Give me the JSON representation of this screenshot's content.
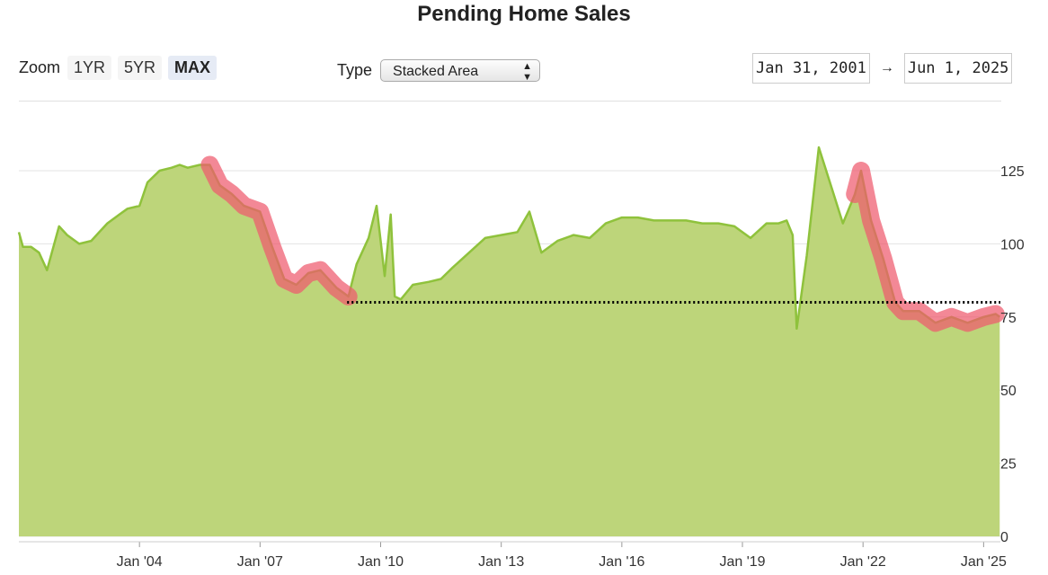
{
  "title": "Pending Home Sales",
  "zoom": {
    "label": "Zoom",
    "options": [
      "1YR",
      "5YR",
      "MAX"
    ],
    "active": "MAX"
  },
  "type_select": {
    "label": "Type",
    "value": "Stacked Area"
  },
  "date_range": {
    "start": "Jan 31, 2001",
    "arrow": "→",
    "end": "Jun 1, 2025"
  },
  "colors": {
    "area_fill": "#bdd57a",
    "area_line": "#8fc23c",
    "highlight": "#ee5a6e",
    "reference_line": "#000000"
  },
  "chart_data": {
    "type": "area",
    "title": "Pending Home Sales",
    "y_ticks": [
      0,
      25,
      50,
      75,
      100,
      125
    ],
    "ylim": [
      0,
      140
    ],
    "x_ticks": [
      "Jan '04",
      "Jan '07",
      "Jan '10",
      "Jan '13",
      "Jan '16",
      "Jan '19",
      "Jan '22",
      "Jan '25"
    ],
    "xlim": [
      "2001-01",
      "2025-06"
    ],
    "grid": "horizontal",
    "reference_line": {
      "value": 80,
      "from": "2009-03",
      "to": "2025-06",
      "style": "dotted"
    },
    "highlights": [
      {
        "from": "2005-10",
        "to": "2009-04"
      },
      {
        "from": "2021-09",
        "to": "2025-05"
      }
    ],
    "series": [
      {
        "x": [
          2001.0,
          2001.1,
          2001.3,
          2001.5,
          2001.7,
          2002.0,
          2002.2,
          2002.5,
          2002.8,
          2003.0,
          2003.2,
          2003.5,
          2003.7,
          2004.0,
          2004.2,
          2004.5,
          2004.8,
          2005.0,
          2005.2,
          2005.5,
          2005.75,
          2006.0,
          2006.3,
          2006.6,
          2007.0,
          2007.3,
          2007.6,
          2007.9,
          2008.2,
          2008.5,
          2008.9,
          2009.2,
          2009.4,
          2009.7,
          2009.9,
          2010.1,
          2010.25,
          2010.35,
          2010.5,
          2010.8,
          2011.2,
          2011.5,
          2011.8,
          2012.2,
          2012.6,
          2013.0,
          2013.4,
          2013.7,
          2014.0,
          2014.4,
          2014.8,
          2015.2,
          2015.6,
          2016.0,
          2016.4,
          2016.8,
          2017.2,
          2017.6,
          2018.0,
          2018.4,
          2018.8,
          2019.2,
          2019.6,
          2019.9,
          2020.1,
          2020.25,
          2020.35,
          2020.6,
          2020.9,
          2021.2,
          2021.5,
          2021.8,
          2021.95,
          2022.2,
          2022.5,
          2022.8,
          2023.0,
          2023.4,
          2023.8,
          2024.2,
          2024.6,
          2025.0,
          2025.3,
          2025.4
        ],
        "values": [
          104,
          99,
          99,
          97,
          91,
          106,
          103,
          100,
          101,
          104,
          107,
          110,
          112,
          113,
          121,
          125,
          126,
          127,
          126,
          127,
          127,
          120,
          117,
          113,
          111,
          99,
          88,
          86,
          90,
          91,
          85,
          82,
          93,
          102,
          113,
          89,
          110,
          82,
          81,
          86,
          87,
          88,
          92,
          97,
          102,
          103,
          104,
          111,
          97,
          101,
          103,
          102,
          107,
          109,
          109,
          108,
          108,
          108,
          107,
          107,
          106,
          102,
          107,
          107,
          108,
          103,
          71,
          96,
          133,
          120,
          107,
          117,
          125,
          108,
          95,
          80,
          77,
          77,
          73,
          75,
          73,
          75,
          76,
          75
        ]
      }
    ]
  }
}
